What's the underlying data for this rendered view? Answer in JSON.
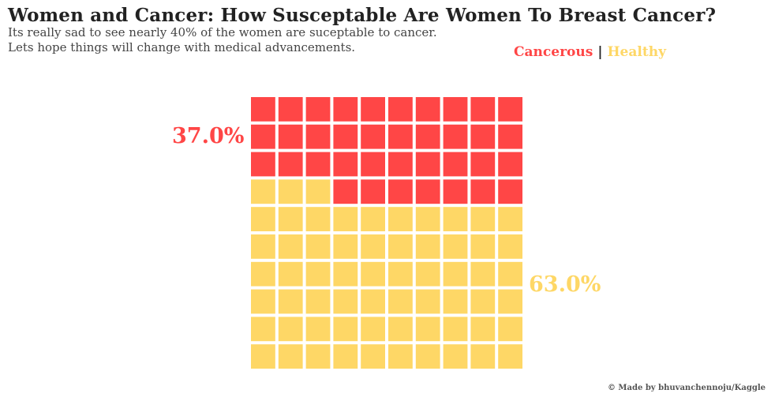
{
  "title": "Women and Cancer: How Susceptable Are Women To Breast Cancer?",
  "subtitle_lines": [
    "Its really sad to see nearly 40% of the women are suceptable to cancer.",
    "Lets hope things will change with medical advancements."
  ],
  "legend": {
    "cancerous": "Cancerous",
    "separator": "|",
    "healthy": "Healthy"
  },
  "labels": {
    "cancerous_pct": "37.0%",
    "healthy_pct": "63.0%"
  },
  "credit": "© Made by bhuvanchennoju/Kaggle",
  "colors": {
    "cancerous": "#ff4646",
    "healthy": "#fed766",
    "title": "#222222"
  },
  "chart_data": {
    "type": "waffle",
    "rows": 10,
    "columns": 10,
    "categories": [
      "Cancerous",
      "Healthy"
    ],
    "values": [
      37,
      63
    ],
    "unit": "percent",
    "fill_order": "from top-right, row by row right-to-left"
  }
}
